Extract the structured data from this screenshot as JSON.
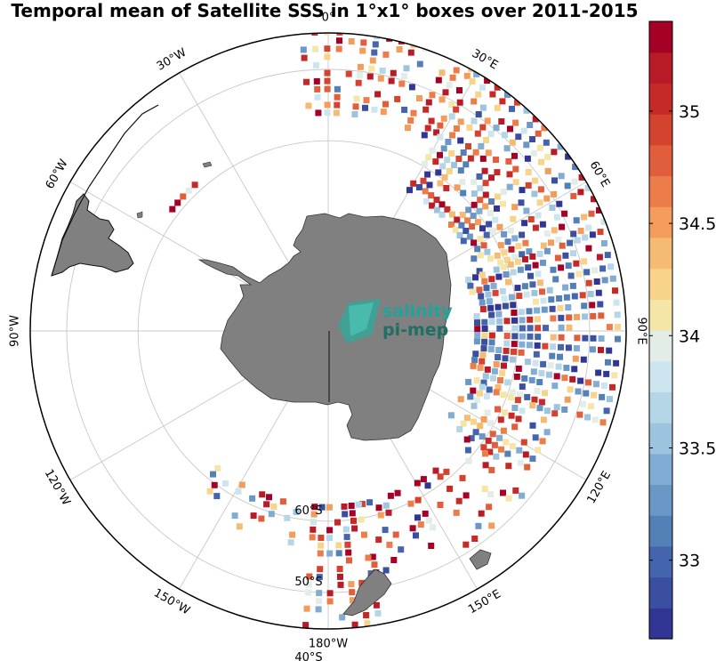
{
  "title": "Temporal mean of Satellite SSS in 1°x1° boxes over 2011-2015",
  "logo": {
    "line1": "salinity",
    "line2": "pi-mep"
  },
  "lon_labels": [
    {
      "text": "0°",
      "lon": 0
    },
    {
      "text": "30°E",
      "lon": 30
    },
    {
      "text": "60°E",
      "lon": 60
    },
    {
      "text": "90°E",
      "lon": 90
    },
    {
      "text": "120°E",
      "lon": 120
    },
    {
      "text": "150°E",
      "lon": 150
    },
    {
      "text": "180°W",
      "lon": 180
    },
    {
      "text": "150°W",
      "lon": -150
    },
    {
      "text": "120°W",
      "lon": -120
    },
    {
      "text": "90°W",
      "lon": -90
    },
    {
      "text": "60°W",
      "lon": -60
    },
    {
      "text": "30°W",
      "lon": -30
    }
  ],
  "lat_labels": [
    {
      "text": "60°S",
      "lat": -60
    },
    {
      "text": "50°S",
      "lat": -50
    },
    {
      "text": "40°S",
      "lat": -40
    }
  ],
  "colorbar": {
    "min": 32.65,
    "max": 35.4,
    "ticks": [
      {
        "value": 33,
        "text": "33"
      },
      {
        "value": 33.5,
        "text": "33.5"
      },
      {
        "value": 34,
        "text": "34"
      },
      {
        "value": 34.5,
        "text": "34.5"
      },
      {
        "value": 35,
        "text": "35"
      }
    ],
    "colors": [
      "#313695",
      "#3a4fa0",
      "#4464ad",
      "#5480b8",
      "#6a97c6",
      "#81acd3",
      "#9cc4de",
      "#b5d6e6",
      "#cce5ee",
      "#e1ede6",
      "#f5e6a8",
      "#f7d48a",
      "#f6bb72",
      "#f39c5c",
      "#ec7d4a",
      "#e05e3b",
      "#d44330",
      "#c62a27",
      "#b81b27",
      "#a50026"
    ]
  },
  "chart_data": {
    "type": "map",
    "projection": "south polar stereographic",
    "variable": "Satellite SSS",
    "period": "2011-2015",
    "grid": "1°x1° boxes",
    "lat_circles": [
      -60,
      -50,
      -40,
      -30
    ],
    "meridian_step_deg": 30,
    "colorbar_range": [
      32.65,
      35.4
    ],
    "colorbar_ticks": [
      33,
      33.5,
      34,
      34.5,
      35
    ],
    "colors": {
      "land": "#808080",
      "grid": "#c8c8c8",
      "background": "#ffffff"
    }
  }
}
